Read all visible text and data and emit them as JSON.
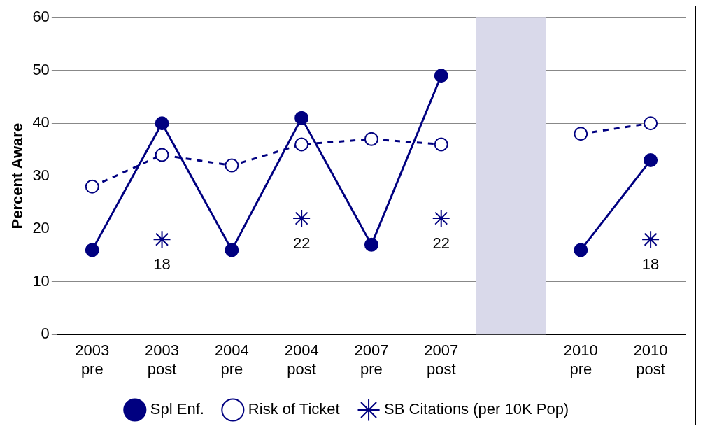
{
  "chart_data": {
    "type": "line",
    "ylabel": "Percent Aware",
    "categories": [
      "2003 pre",
      "2003 post",
      "2004 pre",
      "2004 post",
      "2007 pre",
      "2007 post",
      null,
      "2010 pre",
      "2010 post"
    ],
    "series": [
      {
        "name": "Spl Enf.",
        "color": "#000080",
        "marker": "circle",
        "line_style": "solid",
        "values": [
          16,
          40,
          16,
          41,
          17,
          49,
          null,
          16,
          33
        ]
      },
      {
        "name": "Risk of Ticket",
        "color": "#000080",
        "marker": "circle",
        "line_style": "dashed",
        "values": [
          28,
          34,
          32,
          36,
          37,
          36,
          null,
          38,
          40
        ]
      },
      {
        "name": "SB Citations (per 10K Pop)",
        "type": "scatter",
        "color": "#000080",
        "marker": "cross",
        "values": [
          null,
          18,
          null,
          22,
          null,
          22,
          null,
          null,
          18
        ],
        "value_labels": [
          null,
          "18",
          null,
          "22",
          null,
          "22",
          null,
          null,
          "18"
        ]
      }
    ],
    "bands": [
      {
        "axis": "x",
        "from": "2007 post",
        "to": "2010 pre",
        "color": "#d9d9ea"
      }
    ],
    "ylim": [
      0,
      60
    ],
    "yticks": [
      0,
      10,
      20,
      30,
      40,
      50,
      60
    ],
    "grid": "y",
    "legend": "bottom"
  }
}
